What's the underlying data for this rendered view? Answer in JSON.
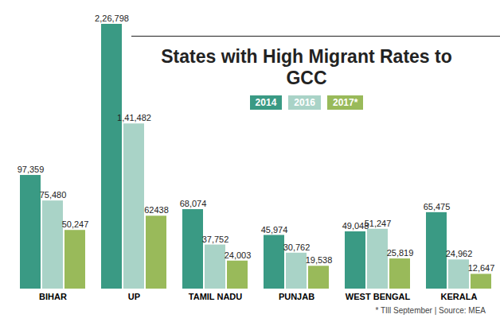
{
  "chart_data": {
    "type": "bar",
    "title": "States with High Migrant Rates to GCC",
    "caption": "* TIll September | Source: MEA",
    "categories": [
      "BIHAR",
      "UP",
      "TAMIL NADU",
      "PUNJAB",
      "WEST BENGAL",
      "KERALA"
    ],
    "series": [
      {
        "name": "2014",
        "color": "#3a9a84",
        "values": [
          97359,
          226798,
          68074,
          45974,
          49048,
          65475
        ],
        "value_labels": [
          "97,359",
          "2,26,798",
          "68,074",
          "45,974",
          "49,048",
          "65,475"
        ]
      },
      {
        "name": "2016",
        "color": "#a9d3c7",
        "values": [
          75480,
          141482,
          37752,
          30762,
          51247,
          24962
        ],
        "value_labels": [
          "75,480",
          "1,41,482",
          "37,752",
          "30,762",
          "51,247",
          "24,962"
        ]
      },
      {
        "name": "2017*",
        "color": "#99ba5a",
        "values": [
          50247,
          62438,
          24003,
          19538,
          25819,
          12647
        ],
        "value_labels": [
          "50,247",
          "62438",
          "24,003",
          "19,538",
          "25,819",
          "12,647"
        ]
      }
    ],
    "ylim": [
      0,
      226798
    ],
    "data_labels": true,
    "tick_labels": "x",
    "legend": "top"
  }
}
